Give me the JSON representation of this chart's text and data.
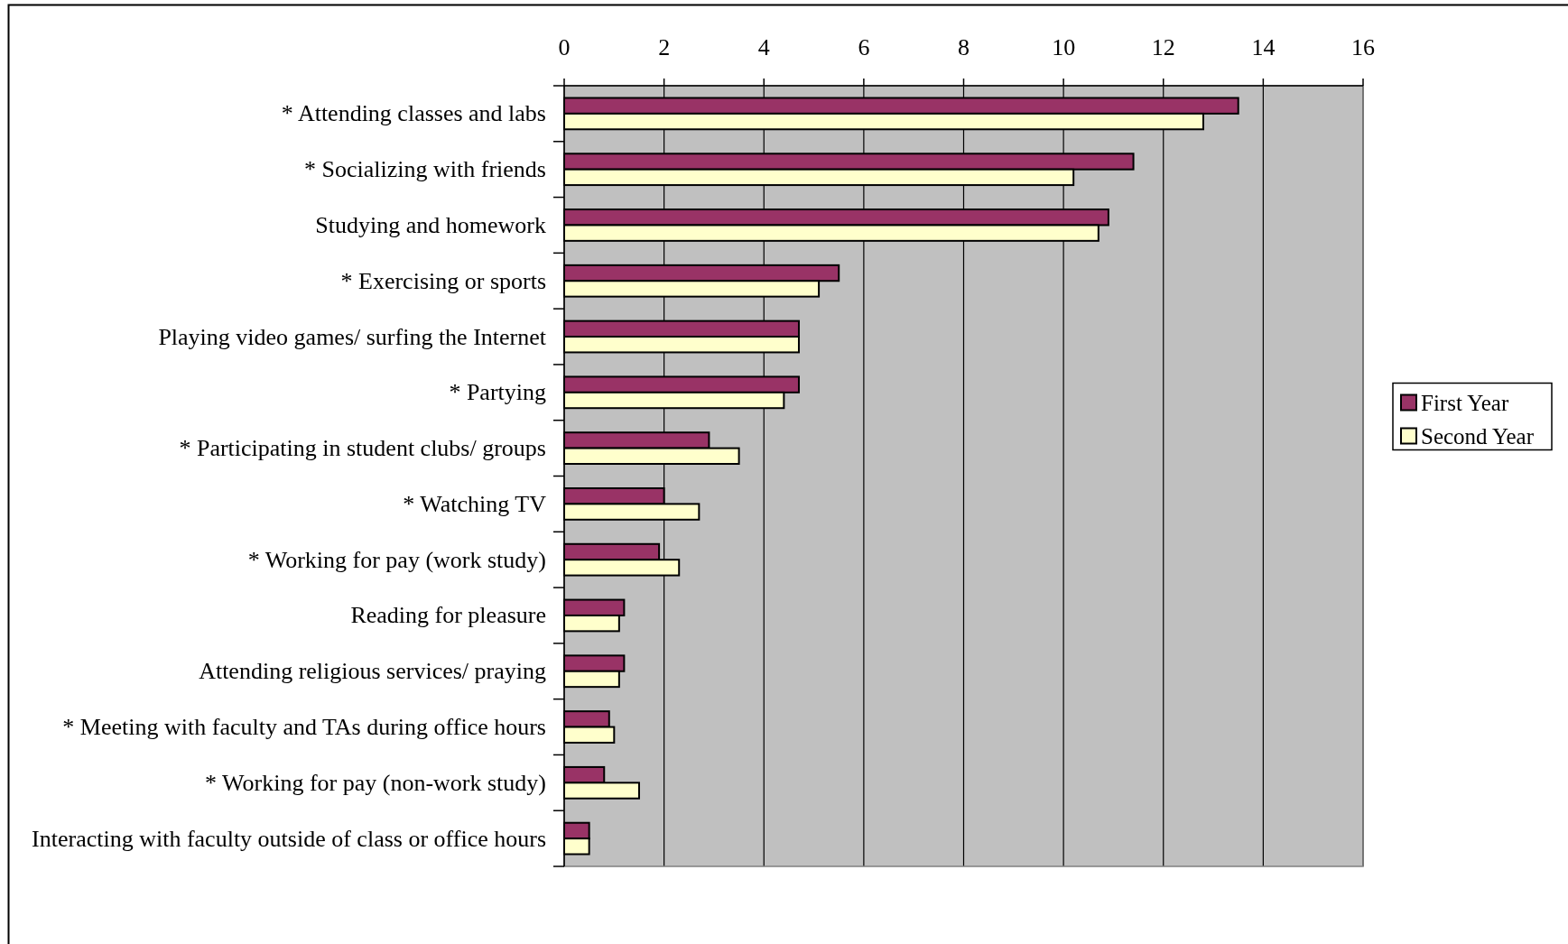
{
  "chart_data": {
    "type": "bar",
    "orientation": "horizontal",
    "categories": [
      "* Attending classes and labs",
      "* Socializing with friends",
      "Studying and homework",
      "* Exercising or sports",
      "Playing video games/ surfing the Internet",
      "* Partying",
      "* Participating in student clubs/ groups",
      "* Watching TV",
      "* Working for pay (work study)",
      "Reading for pleasure",
      "Attending religious services/ praying",
      "* Meeting with faculty and TAs during office hours",
      "* Working for pay (non-work study)",
      "Interacting with faculty outside of class or office hours"
    ],
    "series": [
      {
        "name": "First Year",
        "color": "#993366",
        "values": [
          13.5,
          11.4,
          10.9,
          5.5,
          4.7,
          4.7,
          2.9,
          2.0,
          1.9,
          1.2,
          1.2,
          0.9,
          0.8,
          0.5
        ]
      },
      {
        "name": "Second Year",
        "color": "#ffffcc",
        "values": [
          12.8,
          10.2,
          10.7,
          5.1,
          4.7,
          4.4,
          3.5,
          2.7,
          2.3,
          1.1,
          1.1,
          1.0,
          1.5,
          0.5
        ]
      }
    ],
    "xlim": [
      0,
      16
    ],
    "xticks": [
      0,
      2,
      4,
      6,
      8,
      10,
      12,
      14,
      16
    ],
    "grid": "x",
    "legend": "right"
  }
}
